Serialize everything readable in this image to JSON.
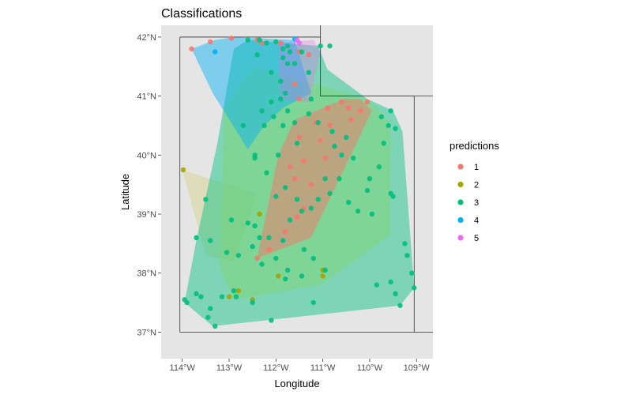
{
  "chart_data": {
    "type": "scatter",
    "title": "Classifications",
    "xlabel": "Longitude",
    "ylabel": "Latitude",
    "xlim": [
      -114.45,
      -108.65
    ],
    "ylim": [
      36.55,
      42.2
    ],
    "x_ticks": [
      -114,
      -113,
      -112,
      -111,
      -110,
      -109
    ],
    "x_tick_labels": [
      "114°W",
      "113°W",
      "112°W",
      "111°W",
      "110°W",
      "109°W"
    ],
    "y_ticks": [
      37,
      38,
      39,
      40,
      41,
      42
    ],
    "y_tick_labels": [
      "37°N",
      "38°N",
      "39°N",
      "40°N",
      "41°N",
      "42°N"
    ],
    "legend": {
      "title": "predictions",
      "position": "right",
      "entries": [
        {
          "label": "1",
          "color": "#F8766D"
        },
        {
          "label": "2",
          "color": "#A3A500"
        },
        {
          "label": "3",
          "color": "#00BF7D"
        },
        {
          "label": "4",
          "color": "#00B0F6"
        },
        {
          "label": "5",
          "color": "#E76BF3"
        }
      ]
    },
    "panel_background": "#E5E5E5",
    "boundary_color": "#333333",
    "boundaries": [
      [
        [
          -114.05,
          42.0
        ],
        [
          -111.05,
          42.0
        ],
        [
          -111.05,
          41.0
        ],
        [
          -109.05,
          41.0
        ],
        [
          -109.05,
          37.0
        ],
        [
          -114.05,
          37.0
        ],
        [
          -114.05,
          42.0
        ]
      ],
      [
        [
          -111.05,
          42.0
        ],
        [
          -111.05,
          42.2
        ]
      ],
      [
        [
          -111.05,
          41.0
        ],
        [
          -108.65,
          41.0
        ]
      ],
      [
        [
          -109.05,
          37.0
        ],
        [
          -108.65,
          37.0
        ]
      ]
    ],
    "hulls": [
      {
        "group": "2",
        "fill": "#C9C94F",
        "opacity": 0.28,
        "points": [
          [
            -114.0,
            39.75
          ],
          [
            -112.4,
            39.35
          ],
          [
            -112.9,
            38.2
          ],
          [
            -113.5,
            38.3
          ]
        ]
      },
      {
        "group": "3",
        "fill": "#00BF7D",
        "opacity": 0.45,
        "points": [
          [
            -112.6,
            41.95
          ],
          [
            -111.1,
            41.85
          ],
          [
            -110.9,
            41.45
          ],
          [
            -110.05,
            40.95
          ],
          [
            -109.5,
            40.75
          ],
          [
            -109.3,
            40.4
          ],
          [
            -109.05,
            37.75
          ],
          [
            -109.35,
            37.45
          ],
          [
            -113.35,
            37.1
          ],
          [
            -113.95,
            37.5
          ],
          [
            -113.7,
            38.55
          ],
          [
            -113.25,
            40.2
          ],
          [
            -112.9,
            41.8
          ]
        ]
      },
      {
        "group": "3",
        "fill": "#7FD67A",
        "opacity": 0.55,
        "points": [
          [
            -112.5,
            41.5
          ],
          [
            -110.05,
            40.95
          ],
          [
            -109.55,
            40.55
          ],
          [
            -109.55,
            38.65
          ],
          [
            -111.05,
            37.8
          ],
          [
            -112.9,
            37.55
          ],
          [
            -113.2,
            38.1
          ],
          [
            -113.1,
            40.8
          ]
        ]
      },
      {
        "group": "1",
        "fill": "#F8766D",
        "opacity": 0.5,
        "points": [
          [
            -111.6,
            40.6
          ],
          [
            -110.55,
            40.95
          ],
          [
            -110.2,
            40.95
          ],
          [
            -109.95,
            40.75
          ],
          [
            -111.25,
            38.6
          ],
          [
            -112.4,
            38.25
          ],
          [
            -111.95,
            40.0
          ]
        ]
      },
      {
        "group": "4",
        "fill": "#00B0F6",
        "opacity": 0.45,
        "points": [
          [
            -113.8,
            41.8
          ],
          [
            -113.3,
            41.95
          ],
          [
            -112.9,
            42.0
          ],
          [
            -111.6,
            41.95
          ],
          [
            -111.25,
            41.05
          ],
          [
            -111.85,
            40.8
          ],
          [
            -112.25,
            40.5
          ],
          [
            -112.6,
            40.1
          ],
          [
            -113.35,
            41.05
          ]
        ]
      },
      {
        "group": "5",
        "fill": "#E76BF3",
        "opacity": 0.3,
        "points": [
          [
            -111.95,
            41.9
          ],
          [
            -111.2,
            41.95
          ],
          [
            -111.05,
            41.75
          ],
          [
            -111.3,
            40.9
          ],
          [
            -111.9,
            40.95
          ]
        ]
      }
    ],
    "series": [
      {
        "name": "1",
        "color": "#F8766D",
        "points": [
          [
            -113.8,
            41.8
          ],
          [
            -113.4,
            41.92
          ],
          [
            -112.95,
            41.98
          ],
          [
            -112.4,
            41.95
          ],
          [
            -112.3,
            41.9
          ],
          [
            -111.9,
            41.9
          ],
          [
            -111.5,
            41.75
          ],
          [
            -111.3,
            41.7
          ],
          [
            -111.6,
            41.2
          ],
          [
            -111.5,
            40.95
          ],
          [
            -110.9,
            40.8
          ],
          [
            -110.6,
            40.9
          ],
          [
            -110.45,
            40.8
          ],
          [
            -110.2,
            40.75
          ],
          [
            -110.05,
            40.9
          ],
          [
            -110.4,
            40.6
          ],
          [
            -110.85,
            40.5
          ],
          [
            -111.15,
            40.55
          ],
          [
            -111.5,
            40.3
          ],
          [
            -111.7,
            39.8
          ],
          [
            -111.6,
            39.6
          ],
          [
            -111.4,
            39.9
          ],
          [
            -111.25,
            39.5
          ],
          [
            -111.4,
            39.1
          ],
          [
            -111.55,
            38.95
          ],
          [
            -111.8,
            38.7
          ],
          [
            -112.15,
            38.4
          ],
          [
            -112.4,
            38.25
          ],
          [
            -111.05,
            40.25
          ],
          [
            -110.95,
            39.95
          ]
        ]
      },
      {
        "group": "2",
        "name": "2",
        "color": "#A3A500",
        "points": [
          [
            -113.98,
            39.75
          ],
          [
            -113.0,
            37.6
          ],
          [
            -112.8,
            37.7
          ],
          [
            -112.5,
            37.55
          ],
          [
            -111.95,
            37.95
          ],
          [
            -111.0,
            38.05
          ],
          [
            -111.0,
            37.95
          ],
          [
            -112.35,
            39.0
          ]
        ]
      },
      {
        "name": "3",
        "color": "#00BF7D",
        "points": [
          [
            -112.35,
            41.95
          ],
          [
            -112.2,
            41.9
          ],
          [
            -112.0,
            41.92
          ],
          [
            -111.85,
            41.8
          ],
          [
            -111.75,
            41.85
          ],
          [
            -111.7,
            41.75
          ],
          [
            -111.45,
            41.75
          ],
          [
            -111.05,
            41.85
          ],
          [
            -110.85,
            41.85
          ],
          [
            -111.85,
            41.65
          ],
          [
            -111.75,
            41.55
          ],
          [
            -111.6,
            41.55
          ],
          [
            -111.8,
            41.05
          ],
          [
            -111.9,
            40.95
          ],
          [
            -111.75,
            40.75
          ],
          [
            -111.85,
            40.5
          ],
          [
            -112.05,
            40.65
          ],
          [
            -112.25,
            40.5
          ],
          [
            -112.3,
            40.75
          ],
          [
            -111.3,
            41.4
          ],
          [
            -111.25,
            40.95
          ],
          [
            -111.3,
            40.7
          ],
          [
            -111.6,
            40.55
          ],
          [
            -111.1,
            40.55
          ],
          [
            -110.8,
            40.4
          ],
          [
            -110.5,
            40.3
          ],
          [
            -110.75,
            40.15
          ],
          [
            -111.55,
            40.2
          ],
          [
            -111.95,
            40.0
          ],
          [
            -112.45,
            39.95
          ],
          [
            -112.2,
            39.7
          ],
          [
            -111.8,
            39.45
          ],
          [
            -111.55,
            39.25
          ],
          [
            -111.25,
            39.1
          ],
          [
            -110.85,
            39.35
          ],
          [
            -110.95,
            39.6
          ],
          [
            -110.6,
            40.0
          ],
          [
            -110.35,
            39.95
          ],
          [
            -109.75,
            40.65
          ],
          [
            -109.55,
            40.75
          ],
          [
            -109.45,
            40.45
          ],
          [
            -109.6,
            40.5
          ],
          [
            -109.7,
            40.2
          ],
          [
            -109.8,
            39.8
          ],
          [
            -110.0,
            39.6
          ],
          [
            -110.05,
            39.4
          ],
          [
            -109.55,
            39.35
          ],
          [
            -109.95,
            39.0
          ],
          [
            -110.25,
            39.05
          ],
          [
            -110.45,
            39.2
          ],
          [
            -110.65,
            39.6
          ],
          [
            -111.1,
            39.25
          ],
          [
            -111.45,
            39.05
          ],
          [
            -111.7,
            38.9
          ],
          [
            -111.85,
            38.55
          ],
          [
            -111.4,
            38.4
          ],
          [
            -111.2,
            38.25
          ],
          [
            -110.95,
            38.05
          ],
          [
            -111.45,
            37.95
          ],
          [
            -111.75,
            38.05
          ],
          [
            -112.3,
            38.15
          ],
          [
            -112.5,
            38.45
          ],
          [
            -112.8,
            38.3
          ],
          [
            -113.05,
            38.35
          ],
          [
            -113.4,
            38.55
          ],
          [
            -113.5,
            39.25
          ],
          [
            -112.95,
            38.9
          ],
          [
            -112.6,
            38.85
          ],
          [
            -112.35,
            38.6
          ],
          [
            -112.0,
            38.25
          ],
          [
            -111.8,
            37.9
          ],
          [
            -112.9,
            37.7
          ],
          [
            -113.15,
            37.6
          ],
          [
            -113.4,
            37.4
          ],
          [
            -113.6,
            37.6
          ],
          [
            -113.7,
            37.65
          ],
          [
            -113.9,
            37.5
          ],
          [
            -113.95,
            37.55
          ],
          [
            -113.7,
            38.6
          ],
          [
            -113.45,
            37.25
          ],
          [
            -113.3,
            37.1
          ],
          [
            -112.85,
            37.6
          ],
          [
            -112.5,
            37.5
          ],
          [
            -112.1,
            37.2
          ],
          [
            -111.2,
            37.5
          ],
          [
            -109.85,
            37.8
          ],
          [
            -109.55,
            37.85
          ],
          [
            -109.45,
            37.65
          ],
          [
            -109.35,
            37.45
          ],
          [
            -109.05,
            37.75
          ],
          [
            -109.1,
            38.0
          ],
          [
            -109.2,
            38.3
          ],
          [
            -109.25,
            38.5
          ],
          [
            -109.5,
            39.3
          ],
          [
            -112.6,
            41.95
          ],
          [
            -112.4,
            41.7
          ],
          [
            -112.1,
            41.4
          ],
          [
            -111.9,
            41.25
          ],
          [
            -112.1,
            40.9
          ],
          [
            -112.7,
            40.5
          ],
          [
            -112.45,
            40.0
          ],
          [
            -112.0,
            39.3
          ],
          [
            -112.45,
            38.8
          ],
          [
            -112.15,
            38.6
          ]
        ]
      },
      {
        "name": "4",
        "color": "#00B0F6",
        "points": [
          [
            -113.3,
            41.75
          ],
          [
            -111.6,
            41.97
          ]
        ]
      },
      {
        "name": "5",
        "color": "#E76BF3",
        "points": [
          [
            -111.55,
            41.95
          ],
          [
            -111.5,
            41.9
          ]
        ]
      }
    ]
  }
}
